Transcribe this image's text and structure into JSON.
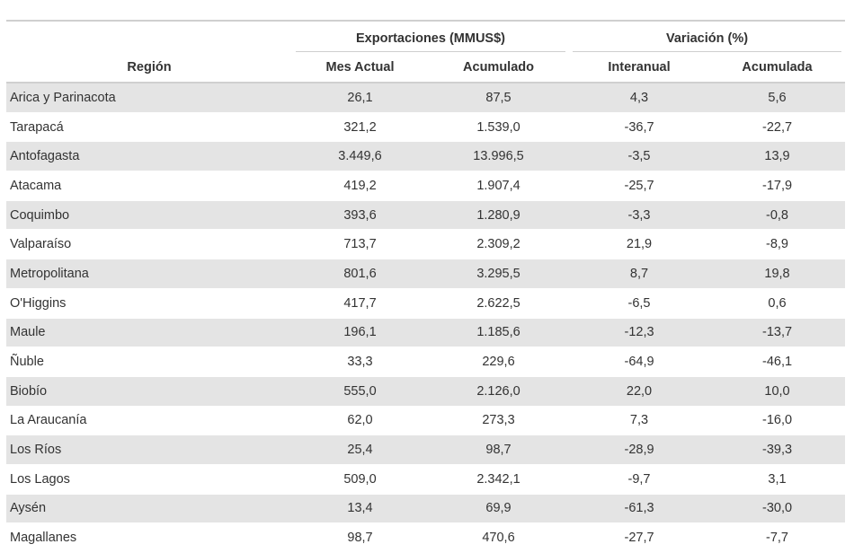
{
  "table": {
    "headers": {
      "region": "Región",
      "exports_group": "Exportaciones (MMUS$)",
      "variation_group": "Variación (%)",
      "mes_actual": "Mes Actual",
      "acumulado": "Acumulado",
      "interanual": "Interanual",
      "acumulada": "Acumulada"
    },
    "rows": [
      {
        "region": "Arica y Parinacota",
        "mes_actual": "26,1",
        "acumulado": "87,5",
        "interanual": "4,3",
        "acumulada": "5,6"
      },
      {
        "region": "Tarapacá",
        "mes_actual": "321,2",
        "acumulado": "1.539,0",
        "interanual": "-36,7",
        "acumulada": "-22,7"
      },
      {
        "region": "Antofagasta",
        "mes_actual": "3.449,6",
        "acumulado": "13.996,5",
        "interanual": "-3,5",
        "acumulada": "13,9"
      },
      {
        "region": "Atacama",
        "mes_actual": "419,2",
        "acumulado": "1.907,4",
        "interanual": "-25,7",
        "acumulada": "-17,9"
      },
      {
        "region": "Coquimbo",
        "mes_actual": "393,6",
        "acumulado": "1.280,9",
        "interanual": "-3,3",
        "acumulada": "-0,8"
      },
      {
        "region": "Valparaíso",
        "mes_actual": "713,7",
        "acumulado": "2.309,2",
        "interanual": "21,9",
        "acumulada": "-8,9"
      },
      {
        "region": "Metropolitana",
        "mes_actual": "801,6",
        "acumulado": "3.295,5",
        "interanual": "8,7",
        "acumulada": "19,8"
      },
      {
        "region": "O'Higgins",
        "mes_actual": "417,7",
        "acumulado": "2.622,5",
        "interanual": "-6,5",
        "acumulada": "0,6"
      },
      {
        "region": "Maule",
        "mes_actual": "196,1",
        "acumulado": "1.185,6",
        "interanual": "-12,3",
        "acumulada": "-13,7"
      },
      {
        "region": "Ñuble",
        "mes_actual": "33,3",
        "acumulado": "229,6",
        "interanual": "-64,9",
        "acumulada": "-46,1"
      },
      {
        "region": "Biobío",
        "mes_actual": "555,0",
        "acumulado": "2.126,0",
        "interanual": "22,0",
        "acumulada": "10,0"
      },
      {
        "region": "La Araucanía",
        "mes_actual": "62,0",
        "acumulado": "273,3",
        "interanual": "7,3",
        "acumulada": "-16,0"
      },
      {
        "region": "Los Ríos",
        "mes_actual": "25,4",
        "acumulado": "98,7",
        "interanual": "-28,9",
        "acumulada": "-39,3"
      },
      {
        "region": "Los Lagos",
        "mes_actual": "509,0",
        "acumulado": "2.342,1",
        "interanual": "-9,7",
        "acumulada": "3,1"
      },
      {
        "region": "Aysén",
        "mes_actual": "13,4",
        "acumulado": "69,9",
        "interanual": "-61,3",
        "acumulada": "-30,0"
      },
      {
        "region": "Magallanes",
        "mes_actual": "98,7",
        "acumulado": "470,6",
        "interanual": "-27,7",
        "acumulada": "-7,7"
      }
    ]
  }
}
